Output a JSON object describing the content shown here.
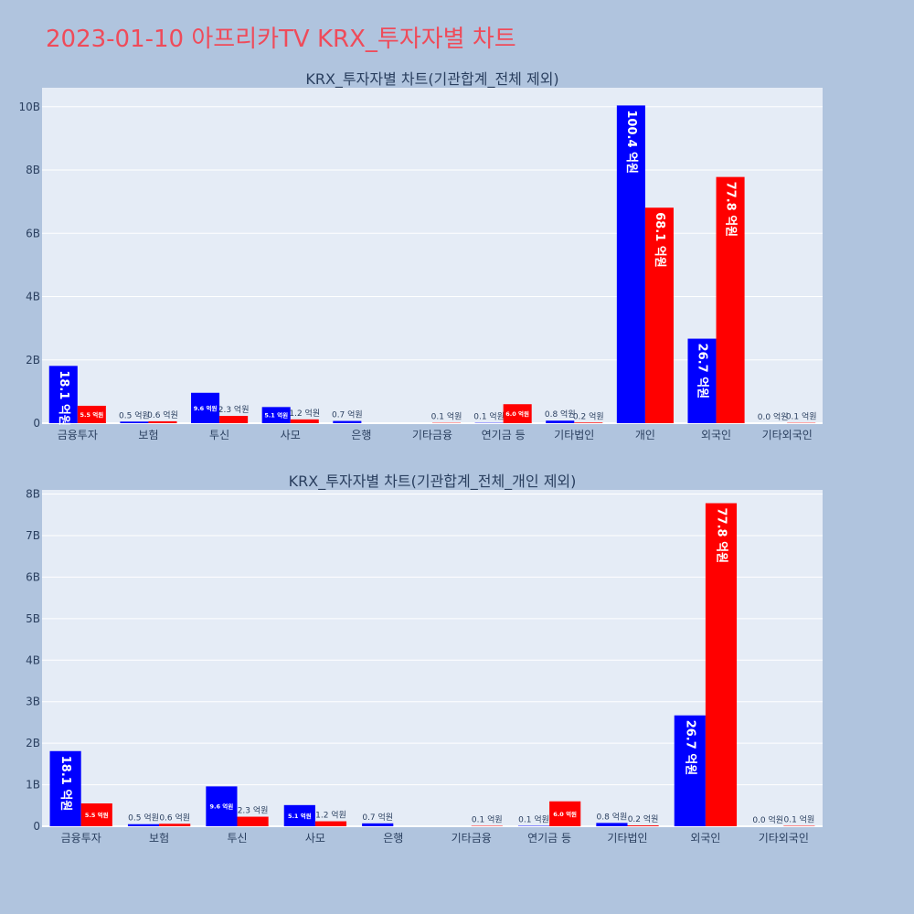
{
  "page": {
    "title": "2023-01-10 아프리카TV KRX_투자자별 차트"
  },
  "colors": {
    "buy": "#0000ff",
    "sell": "#ff0000",
    "plot_bg": "#e5ecf6",
    "paper_bg": "#b0c4de",
    "title": "#ef4b5a"
  },
  "chart_data": [
    {
      "type": "bar",
      "title": "KRX_투자자별 차트(기관합계_전체 제외)",
      "categories": [
        "금융투자",
        "보험",
        "투신",
        "사모",
        "은행",
        "기타금융",
        "연기금 등",
        "기타법인",
        "개인",
        "외국인",
        "기타외국인"
      ],
      "series": [
        {
          "name": "buy",
          "color": "#0000ff",
          "values": [
            1810000000.0,
            50000000.0,
            960000000.0,
            510000000.0,
            70000000.0,
            0,
            10000000.0,
            80000000.0,
            10040000000.0,
            2670000000.0,
            0
          ],
          "labels": [
            "18.1 억원",
            "0.5 억원",
            "9.6 억원",
            "5.1 억원",
            "0.7 억원",
            "",
            "0.1 억원",
            "0.8 억원",
            "100.4 억원",
            "26.7 억원",
            "0.0 억원"
          ]
        },
        {
          "name": "sell",
          "color": "#ff0000",
          "values": [
            550000000.0,
            60000000.0,
            230000000.0,
            120000000.0,
            0,
            10000000.0,
            600000000.0,
            20000000.0,
            6810000000.0,
            7780000000.0,
            10000000.0
          ],
          "labels": [
            "5.5 억원",
            "0.6 억원",
            "2.3 억원",
            "1.2 억원",
            "",
            "0.1 억원",
            "6.0 억원",
            "0.2 억원",
            "68.1 억원",
            "77.8 억원",
            "0.1 억원"
          ]
        }
      ],
      "yticks": [
        0,
        2000000000.0,
        4000000000.0,
        6000000000.0,
        8000000000.0,
        10000000000.0
      ],
      "ytick_labels": [
        "0",
        "2B",
        "4B",
        "6B",
        "8B",
        "10B"
      ],
      "ylim": [
        0,
        10600000000.0
      ],
      "xlabel": "",
      "ylabel": ""
    },
    {
      "type": "bar",
      "title": "KRX_투자자별 차트(기관합계_전체_개인 제외)",
      "categories": [
        "금융투자",
        "보험",
        "투신",
        "사모",
        "은행",
        "기타금융",
        "연기금 등",
        "기타법인",
        "외국인",
        "기타외국인"
      ],
      "series": [
        {
          "name": "buy",
          "color": "#0000ff",
          "values": [
            1810000000.0,
            50000000.0,
            960000000.0,
            510000000.0,
            70000000.0,
            0,
            10000000.0,
            80000000.0,
            2670000000.0,
            0
          ],
          "labels": [
            "18.1 억원",
            "0.5 억원",
            "9.6 억원",
            "5.1 억원",
            "0.7 억원",
            "",
            "0.1 억원",
            "0.8 억원",
            "26.7 억원",
            "0.0 억원"
          ]
        },
        {
          "name": "sell",
          "color": "#ff0000",
          "values": [
            550000000.0,
            60000000.0,
            230000000.0,
            120000000.0,
            0,
            10000000.0,
            600000000.0,
            20000000.0,
            7780000000.0,
            10000000.0
          ],
          "labels": [
            "5.5 억원",
            "0.6 억원",
            "2.3 억원",
            "1.2 억원",
            "",
            "0.1 억원",
            "6.0 억원",
            "0.2 억원",
            "77.8 억원",
            "0.1 억원"
          ]
        }
      ],
      "yticks": [
        0,
        1000000000.0,
        2000000000.0,
        3000000000.0,
        4000000000.0,
        5000000000.0,
        6000000000.0,
        7000000000.0,
        8000000000.0
      ],
      "ytick_labels": [
        "0",
        "1B",
        "2B",
        "3B",
        "4B",
        "5B",
        "6B",
        "7B",
        "8B"
      ],
      "ylim": [
        0,
        8100000000.0
      ],
      "xlabel": "",
      "ylabel": ""
    }
  ]
}
